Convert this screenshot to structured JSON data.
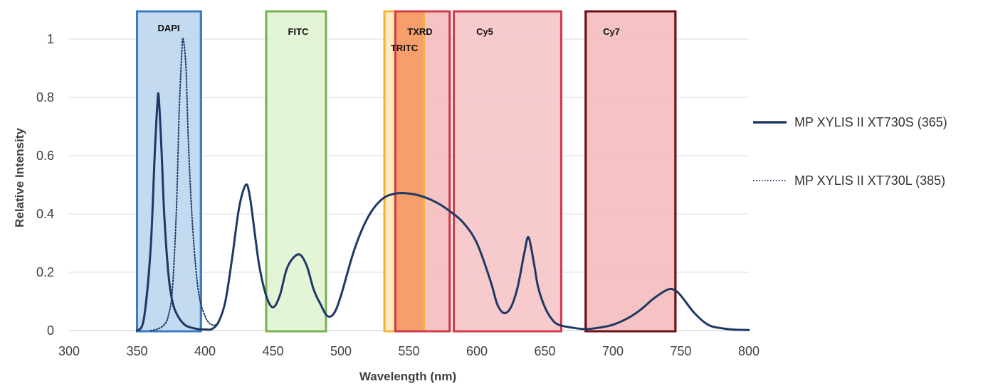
{
  "chart_data": {
    "type": "line",
    "title": "",
    "xlabel": "Wavelength (nm)",
    "ylabel": "Relative Intensity",
    "xlim": [
      300,
      800
    ],
    "ylim": [
      0,
      1.05
    ],
    "x_ticks": [
      300,
      350,
      400,
      450,
      500,
      550,
      600,
      650,
      700,
      750,
      800
    ],
    "y_ticks": [
      {
        "value": 0,
        "label": "0"
      },
      {
        "value": 0.2,
        "label": "0.2"
      },
      {
        "value": 0.4,
        "label": "0.4"
      },
      {
        "value": 0.6,
        "label": "0.6"
      },
      {
        "value": 0.8,
        "label": "0.8"
      },
      {
        "value": 1,
        "label": "1"
      }
    ],
    "grid": "horizontal",
    "legend_position": "right",
    "bands": [
      {
        "name": "DAPI",
        "start": 350,
        "end": 397,
        "fill": "#b9d3ef",
        "stroke": "#3c7bc0"
      },
      {
        "name": "FITC",
        "start": 445,
        "end": 489,
        "fill": "#dff2cf",
        "stroke": "#78b152"
      },
      {
        "name": "TRITC",
        "start": 532,
        "end": 561,
        "fill": "#ffe7b5",
        "stroke": "#f6b43c"
      },
      {
        "name": "TXRD",
        "start": 540,
        "end": 580,
        "fill": "#f3b9b9",
        "stroke": "#d43a4a"
      },
      {
        "name": "Cy5",
        "start": 583,
        "end": 662,
        "fill": "#f6c2c5",
        "stroke": "#d43a4a"
      },
      {
        "name": "Cy7",
        "start": 680,
        "end": 746,
        "fill": "#f3b9b9",
        "stroke": "#6b1014"
      }
    ],
    "overlap_band": {
      "start": 540,
      "end": 561,
      "fill": "#f6995c"
    },
    "series": [
      {
        "name": "MP XYLIS II XT730S (365)",
        "color": "#1f3864",
        "style": "solid",
        "x": [
          350,
          355,
          360,
          363,
          365,
          366,
          368,
          370,
          373,
          376,
          380,
          385,
          390,
          395,
          400,
          405,
          410,
          415,
          420,
          425,
          430,
          433,
          437,
          440,
          445,
          450,
          455,
          460,
          465,
          470,
          475,
          480,
          485,
          490,
          495,
          500,
          510,
          520,
          530,
          540,
          550,
          560,
          570,
          580,
          590,
          600,
          610,
          615,
          620,
          625,
          630,
          635,
          638,
          642,
          645,
          650,
          655,
          660,
          670,
          680,
          690,
          700,
          710,
          720,
          730,
          740,
          745,
          750,
          760,
          770,
          780,
          790,
          800
        ],
        "y": [
          0.0,
          0.04,
          0.28,
          0.6,
          0.78,
          0.8,
          0.62,
          0.4,
          0.2,
          0.1,
          0.05,
          0.02,
          0.01,
          0.005,
          0.004,
          0.005,
          0.03,
          0.1,
          0.25,
          0.42,
          0.5,
          0.46,
          0.32,
          0.22,
          0.12,
          0.08,
          0.12,
          0.21,
          0.25,
          0.26,
          0.22,
          0.14,
          0.09,
          0.05,
          0.06,
          0.12,
          0.28,
          0.39,
          0.45,
          0.47,
          0.47,
          0.46,
          0.44,
          0.41,
          0.37,
          0.3,
          0.17,
          0.09,
          0.06,
          0.08,
          0.15,
          0.27,
          0.32,
          0.23,
          0.15,
          0.08,
          0.04,
          0.02,
          0.01,
          0.005,
          0.01,
          0.02,
          0.04,
          0.07,
          0.11,
          0.14,
          0.14,
          0.12,
          0.06,
          0.02,
          0.008,
          0.003,
          0.002
        ]
      },
      {
        "name": "MP XYLIS II XT730L (385)",
        "color": "#1f3864",
        "style": "dotted",
        "x": [
          360,
          365,
          370,
          373,
          376,
          379,
          381,
          383,
          384,
          386,
          388,
          391,
          395,
          400,
          405,
          410,
          415,
          420,
          425,
          430,
          433,
          437,
          440,
          445,
          450,
          455,
          460,
          465,
          470,
          475,
          480,
          485,
          490,
          495,
          500,
          510,
          520,
          530,
          540,
          550,
          560,
          570,
          580,
          590,
          600,
          610,
          615,
          620,
          625,
          630,
          635,
          638,
          642,
          645,
          650,
          655,
          660,
          670,
          680,
          690,
          700,
          710,
          720,
          730,
          740,
          745,
          750,
          760,
          770,
          780,
          790,
          800
        ],
        "y": [
          0.0,
          0.005,
          0.02,
          0.05,
          0.14,
          0.42,
          0.75,
          0.96,
          1.0,
          0.9,
          0.62,
          0.35,
          0.14,
          0.05,
          0.02,
          0.03,
          0.1,
          0.25,
          0.42,
          0.5,
          0.46,
          0.32,
          0.22,
          0.12,
          0.08,
          0.12,
          0.21,
          0.25,
          0.26,
          0.22,
          0.14,
          0.09,
          0.05,
          0.06,
          0.12,
          0.28,
          0.39,
          0.45,
          0.47,
          0.47,
          0.46,
          0.44,
          0.41,
          0.37,
          0.3,
          0.17,
          0.09,
          0.06,
          0.08,
          0.15,
          0.27,
          0.32,
          0.23,
          0.15,
          0.08,
          0.04,
          0.02,
          0.01,
          0.005,
          0.01,
          0.02,
          0.04,
          0.07,
          0.11,
          0.14,
          0.14,
          0.12,
          0.06,
          0.02,
          0.008,
          0.003,
          0.002
        ]
      }
    ]
  }
}
